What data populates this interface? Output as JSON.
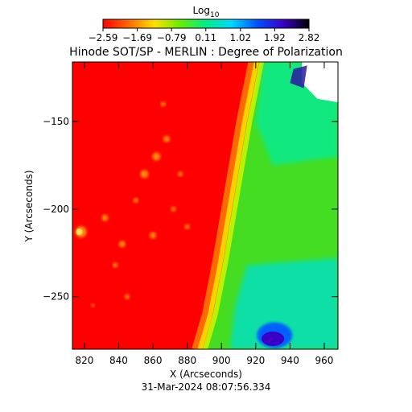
{
  "chart_data": {
    "type": "heatmap",
    "title": "Hinode SOT/SP - MERLIN : Degree of Polarization",
    "xlabel": "X (Arcseconds)",
    "ylabel": "Y (Arcseconds)",
    "timestamp": "31-Mar-2024 08:07:56.334",
    "xlim": [
      813,
      968
    ],
    "ylim": [
      -280,
      -116
    ],
    "x_ticks": [
      820,
      840,
      860,
      880,
      900,
      920,
      940,
      960
    ],
    "x_tick_labels": [
      "820",
      "840",
      "860",
      "880",
      "900",
      "920",
      "940",
      "960"
    ],
    "y_ticks": [
      -150,
      -200,
      -250
    ],
    "y_tick_labels": [
      "−150",
      "−200",
      "−250"
    ],
    "colorbar": {
      "label_base": "Log",
      "label_sub": "10",
      "range": [
        -2.59,
        2.82
      ],
      "ticks": [
        -2.59,
        -1.69,
        -0.79,
        0.11,
        1.02,
        1.92,
        2.82
      ],
      "tick_labels": [
        "−2.59",
        "−1.69",
        "−0.79",
        "0.11",
        "1.02",
        "1.92",
        "2.82"
      ],
      "colors": [
        "#ff0000",
        "#ff6a00",
        "#ffe000",
        "#66ee00",
        "#00ee88",
        "#00d8ff",
        "#0050ff",
        "#3a00c8",
        "#000000"
      ]
    },
    "regions": {
      "background": -2.59,
      "limb_x": [
        922,
        915,
        908,
        901,
        895,
        889
      ],
      "limb_y": [
        -116,
        -150,
        -190,
        -230,
        -260,
        -280
      ],
      "disk_value": 0.0,
      "blue_patch_center": [
        931,
        -272
      ],
      "blue_patch_value": 1.6,
      "white_patch_center": [
        955,
        -125
      ]
    }
  }
}
